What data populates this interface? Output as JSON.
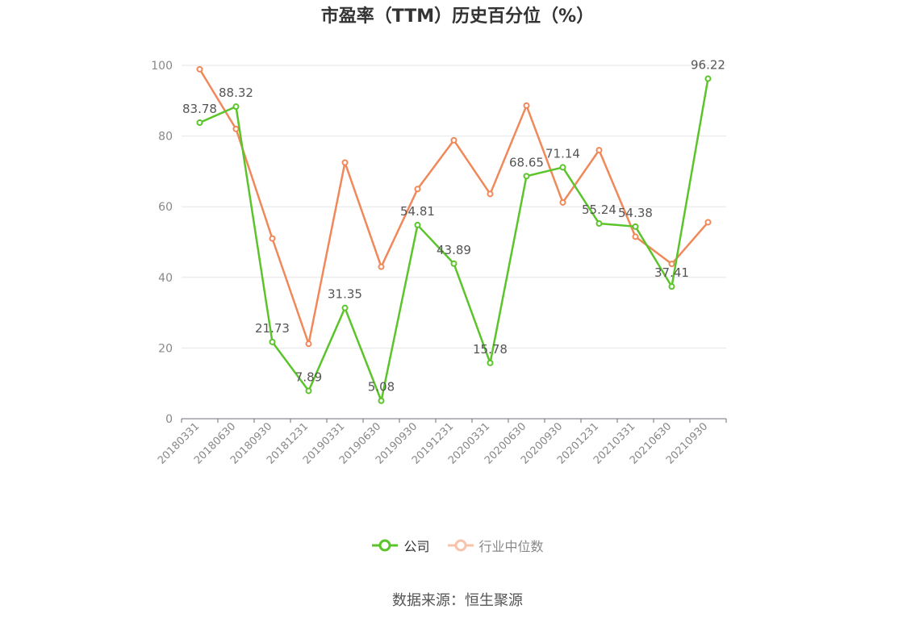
{
  "chart_data": {
    "type": "line",
    "title": "市盈率（TTM）历史百分位（%）",
    "categories": [
      "20180331",
      "20180630",
      "20180930",
      "20181231",
      "20190331",
      "20190630",
      "20190930",
      "20191231",
      "20200331",
      "20200630",
      "20200930",
      "20201231",
      "20210331",
      "20210630",
      "20210930"
    ],
    "series": [
      {
        "name": "公司",
        "color": "#5cc42b",
        "values": [
          83.78,
          88.32,
          21.73,
          7.89,
          31.35,
          5.08,
          54.81,
          43.89,
          15.78,
          68.65,
          71.14,
          55.24,
          54.38,
          37.41,
          96.22
        ],
        "labels": true
      },
      {
        "name": "行业中位数",
        "color": "#f0885a",
        "values": [
          98.9,
          82.0,
          51.0,
          21.2,
          72.5,
          43.0,
          65.0,
          78.8,
          63.6,
          88.6,
          61.2,
          76.0,
          51.5,
          43.8,
          55.6
        ],
        "labels": false
      }
    ],
    "ylim": [
      0,
      100
    ],
    "yticks": [
      0,
      20,
      40,
      60,
      80,
      100
    ],
    "grid": true,
    "legend": "bottom-center"
  },
  "source_text": "数据来源：恒生聚源"
}
